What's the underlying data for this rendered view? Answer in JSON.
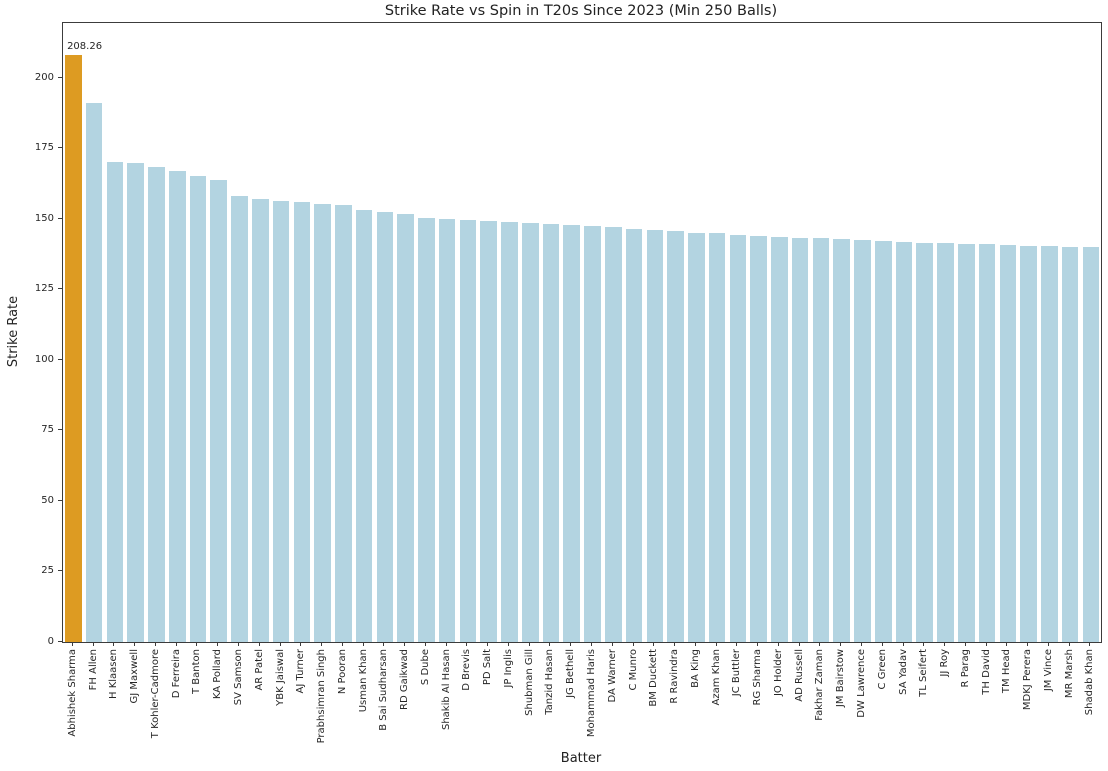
{
  "chart_data": {
    "type": "bar",
    "title": "Strike Rate vs Spin in T20s Since 2023 (Min 250 Balls)",
    "xlabel": "Batter",
    "ylabel": "Strike Rate",
    "ylim": [
      0,
      219.5
    ],
    "yticks": [
      0,
      25,
      50,
      75,
      100,
      125,
      150,
      175,
      200
    ],
    "grid": false,
    "legend": "none",
    "bar_color": "#b3d4e1",
    "highlight_color": "#dd9b22",
    "highlight_index": 0,
    "annotation": {
      "text": "208.26",
      "bar_index": 0
    },
    "categories": [
      "Abhishek Sharma",
      "FH Allen",
      "H Klaasen",
      "GJ Maxwell",
      "T Kohler-Cadmore",
      "D Ferreira",
      "T Banton",
      "KA Pollard",
      "SV Samson",
      "AR Patel",
      "YBK Jaiswal",
      "AJ Turner",
      "Prabhsimran Singh",
      "N Pooran",
      "Usman Khan",
      "B Sai Sudharsan",
      "RD Gaikwad",
      "S Dube",
      "Shakib Al Hasan",
      "D Brevis",
      "PD Salt",
      "JP Inglis",
      "Shubman Gill",
      "Tanzid Hasan",
      "JG Bethell",
      "Mohammad Haris",
      "DA Warner",
      "C Munro",
      "BM Duckett",
      "R Ravindra",
      "BA King",
      "Azam Khan",
      "JC Buttler",
      "RG Sharma",
      "JO Holder",
      "AD Russell",
      "Fakhar Zaman",
      "JM Bairstow",
      "DW Lawrence",
      "C Green",
      "SA Yadav",
      "TL Seifert",
      "JJ Roy",
      "R Parag",
      "TH David",
      "TM Head",
      "MDKJ Perera",
      "JM Vince",
      "MR Marsh",
      "Shadab Khan"
    ],
    "values": [
      208.26,
      191.2,
      170.1,
      169.8,
      168.6,
      167.2,
      165.3,
      163.9,
      158.1,
      157.2,
      156.5,
      156.2,
      155.4,
      154.8,
      153.2,
      152.6,
      151.9,
      150.4,
      150.1,
      149.6,
      149.2,
      148.8,
      148.5,
      148.3,
      147.9,
      147.4,
      147.0,
      146.6,
      146.2,
      145.7,
      145.2,
      144.9,
      144.4,
      144.0,
      143.7,
      143.4,
      143.2,
      142.9,
      142.5,
      142.1,
      141.8,
      141.6,
      141.5,
      141.2,
      141.0,
      140.8,
      140.6,
      140.4,
      140.2,
      139.9
    ]
  }
}
